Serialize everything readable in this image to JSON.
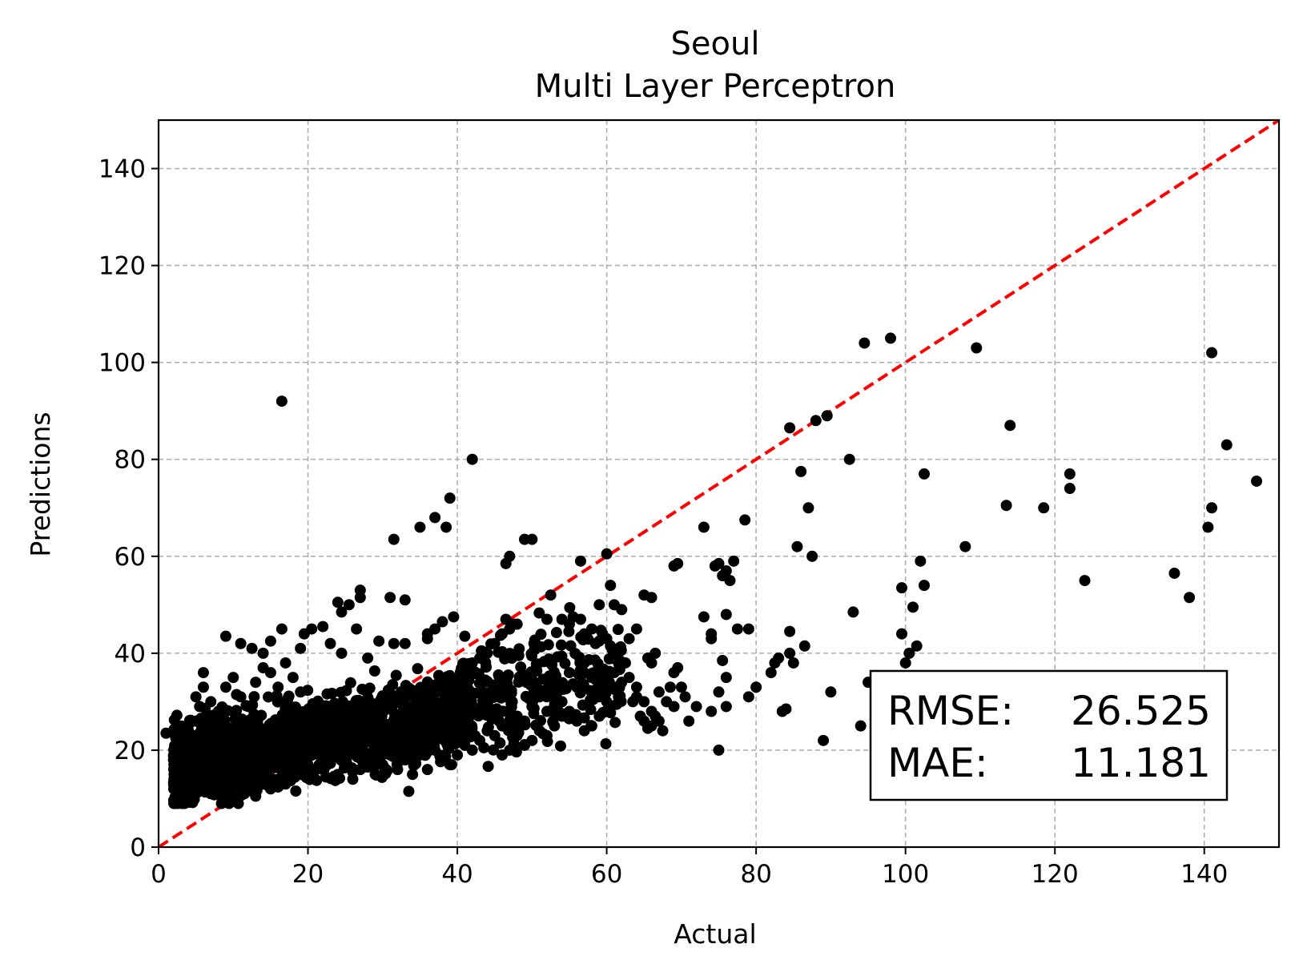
{
  "chart_data": {
    "type": "scatter",
    "title": "Seoul",
    "subtitle": "Multi Layer Perceptron",
    "xlabel": "Actual",
    "ylabel": "Predictions",
    "xlim": [
      0,
      150
    ],
    "ylim": [
      0,
      150
    ],
    "xticks": [
      "0",
      "20",
      "40",
      "60",
      "80",
      "100",
      "120",
      "140"
    ],
    "yticks": [
      "0",
      "20",
      "40",
      "60",
      "80",
      "100",
      "120",
      "140"
    ],
    "grid": true,
    "grid_style": "dashed",
    "reference_line": {
      "from": [
        0,
        0
      ],
      "to": [
        150,
        150
      ],
      "color": "#ff0000",
      "style": "dashed"
    },
    "marker_color": "#000000",
    "metrics": {
      "rmse_label": "RMSE:",
      "rmse_value": "26.525",
      "mae_label": "MAE:",
      "mae_value": "11.181"
    },
    "metrics_box_position": "lower-right",
    "points": [
      [
        1,
        23.5
      ],
      [
        2.5,
        25
      ],
      [
        16.5,
        92
      ],
      [
        42,
        80
      ],
      [
        39,
        72
      ],
      [
        37,
        68
      ],
      [
        35,
        66
      ],
      [
        38.5,
        66
      ],
      [
        31.5,
        63.5
      ],
      [
        49,
        63.5
      ],
      [
        27,
        53
      ],
      [
        27,
        51.5
      ],
      [
        31,
        51.5
      ],
      [
        33,
        51
      ],
      [
        24,
        50.5
      ],
      [
        25.5,
        50
      ],
      [
        24.5,
        48.5
      ],
      [
        39.5,
        47.5
      ],
      [
        38,
        46.5
      ],
      [
        37,
        45
      ],
      [
        36,
        44
      ],
      [
        41,
        43.5
      ],
      [
        22,
        45.5
      ],
      [
        20.5,
        45
      ],
      [
        16.5,
        45
      ],
      [
        19.5,
        44
      ],
      [
        23,
        42
      ],
      [
        26.5,
        45
      ],
      [
        29.5,
        42.5
      ],
      [
        31.5,
        42
      ],
      [
        33,
        42
      ],
      [
        36,
        43
      ],
      [
        15,
        42.5
      ],
      [
        11,
        42
      ],
      [
        9,
        43.5
      ],
      [
        12.5,
        41
      ],
      [
        14,
        40
      ],
      [
        19,
        41
      ],
      [
        24.5,
        40
      ],
      [
        28,
        39
      ],
      [
        3,
        22
      ],
      [
        4,
        24
      ],
      [
        5,
        26
      ],
      [
        5.5,
        29
      ],
      [
        5,
        31
      ],
      [
        6,
        33
      ],
      [
        6,
        36
      ],
      [
        7,
        30
      ],
      [
        8,
        28
      ],
      [
        9,
        33
      ],
      [
        10,
        35
      ],
      [
        11,
        31
      ],
      [
        12,
        29
      ],
      [
        13,
        34
      ],
      [
        14,
        37
      ],
      [
        15,
        36
      ],
      [
        16,
        33
      ],
      [
        17,
        38
      ],
      [
        18,
        35
      ],
      [
        19,
        32
      ],
      [
        2,
        18
      ],
      [
        2.5,
        16
      ],
      [
        3,
        14
      ],
      [
        4,
        17
      ],
      [
        5,
        19
      ],
      [
        6,
        15
      ],
      [
        7,
        13
      ],
      [
        8,
        11
      ],
      [
        9,
        14
      ],
      [
        10,
        16
      ],
      [
        11,
        12
      ],
      [
        12,
        15
      ],
      [
        13,
        10.5
      ],
      [
        14,
        13
      ],
      [
        15,
        12
      ],
      [
        16,
        14
      ],
      [
        17,
        13
      ],
      [
        18,
        16
      ],
      [
        19,
        15
      ],
      [
        20,
        17
      ],
      [
        21,
        14
      ],
      [
        22,
        16
      ],
      [
        23,
        18
      ],
      [
        24,
        15
      ],
      [
        25,
        17
      ],
      [
        26,
        14
      ],
      [
        27,
        16
      ],
      [
        28,
        18
      ],
      [
        29,
        15
      ],
      [
        30,
        17
      ],
      [
        31,
        19
      ],
      [
        32,
        16
      ],
      [
        33,
        18
      ],
      [
        33.5,
        11.5
      ],
      [
        34,
        15
      ],
      [
        35,
        19
      ],
      [
        36,
        16
      ],
      [
        37,
        20
      ],
      [
        38,
        18
      ],
      [
        39,
        17
      ],
      [
        40,
        19
      ],
      [
        41,
        21
      ],
      [
        42,
        20
      ],
      [
        43,
        22
      ],
      [
        44,
        24
      ],
      [
        45,
        23
      ],
      [
        46,
        25
      ],
      [
        47,
        24
      ],
      [
        48,
        27
      ],
      [
        49,
        26
      ],
      [
        50,
        29
      ],
      [
        51,
        31
      ],
      [
        52,
        28
      ],
      [
        53,
        33
      ],
      [
        54,
        30
      ],
      [
        55,
        36
      ],
      [
        56,
        33
      ],
      [
        57,
        38
      ],
      [
        58,
        35
      ],
      [
        59,
        31
      ],
      [
        46.5,
        47
      ],
      [
        47.5,
        46
      ],
      [
        48,
        46
      ],
      [
        47,
        45
      ],
      [
        46,
        44
      ],
      [
        45,
        42
      ],
      [
        44,
        40
      ],
      [
        43,
        39
      ],
      [
        42,
        38
      ],
      [
        41,
        37
      ],
      [
        52,
        47
      ],
      [
        54,
        47
      ],
      [
        55.5,
        47.5
      ],
      [
        56.5,
        47
      ],
      [
        55,
        46
      ],
      [
        57,
        44
      ],
      [
        58,
        45
      ],
      [
        58.5,
        42
      ],
      [
        59,
        42.5
      ],
      [
        60,
        43
      ],
      [
        60.5,
        41.5
      ],
      [
        61.5,
        39
      ],
      [
        62.5,
        38
      ],
      [
        61,
        36
      ],
      [
        62,
        34
      ],
      [
        60,
        30
      ],
      [
        59,
        27
      ],
      [
        58,
        25
      ],
      [
        57,
        24
      ],
      [
        56,
        26
      ],
      [
        55,
        28
      ],
      [
        54,
        27
      ],
      [
        53,
        25
      ],
      [
        52,
        23
      ],
      [
        51,
        24
      ],
      [
        50,
        22
      ],
      [
        49,
        21
      ],
      [
        48,
        23
      ],
      [
        47,
        20
      ],
      [
        46,
        19
      ],
      [
        46.5,
        58.5
      ],
      [
        47,
        60
      ],
      [
        50,
        63.5
      ],
      [
        52.5,
        52
      ],
      [
        56.5,
        59
      ],
      [
        60,
        60.5
      ],
      [
        60.5,
        54
      ],
      [
        61,
        50
      ],
      [
        62,
        49
      ],
      [
        59,
        50
      ],
      [
        65,
        52
      ],
      [
        66,
        51.5
      ],
      [
        64,
        45
      ],
      [
        63,
        43
      ],
      [
        65.5,
        39
      ],
      [
        66.5,
        40
      ],
      [
        66,
        38
      ],
      [
        63,
        35
      ],
      [
        64,
        33
      ],
      [
        65,
        30
      ],
      [
        66,
        28
      ],
      [
        67,
        26
      ],
      [
        67.5,
        24
      ],
      [
        66,
        25
      ],
      [
        65.5,
        24.5
      ],
      [
        64,
        31
      ],
      [
        63.5,
        30
      ],
      [
        64.5,
        27
      ],
      [
        65,
        26
      ],
      [
        68,
        30
      ],
      [
        66.5,
        27
      ],
      [
        67,
        32
      ],
      [
        68.5,
        33
      ],
      [
        69,
        36
      ],
      [
        69.5,
        37
      ],
      [
        70,
        33
      ],
      [
        71,
        26
      ],
      [
        72,
        29
      ],
      [
        70.5,
        31
      ],
      [
        69,
        29
      ],
      [
        69,
        58
      ],
      [
        69.5,
        58.5
      ],
      [
        73,
        66
      ],
      [
        73,
        47.5
      ],
      [
        74,
        44
      ],
      [
        74,
        43
      ],
      [
        74.5,
        58
      ],
      [
        75,
        58.5
      ],
      [
        75.5,
        56
      ],
      [
        76,
        57
      ],
      [
        76.5,
        55
      ],
      [
        77,
        59
      ],
      [
        77.5,
        45
      ],
      [
        76,
        48
      ],
      [
        75,
        32
      ],
      [
        74,
        28
      ],
      [
        76,
        29
      ],
      [
        75,
        20
      ],
      [
        76,
        35
      ],
      [
        75.5,
        38.5
      ],
      [
        78.5,
        67.5
      ],
      [
        79,
        45
      ],
      [
        79,
        31
      ],
      [
        80,
        33
      ],
      [
        82,
        36
      ],
      [
        82.5,
        38
      ],
      [
        83,
        39
      ],
      [
        83.5,
        28
      ],
      [
        84,
        28.5
      ],
      [
        84.5,
        40
      ],
      [
        85,
        38
      ],
      [
        85.5,
        62
      ],
      [
        84.5,
        44.5
      ],
      [
        84.5,
        86.5
      ],
      [
        86,
        77.5
      ],
      [
        87,
        70
      ],
      [
        87.5,
        60
      ],
      [
        86.5,
        41.5
      ],
      [
        88,
        88
      ],
      [
        89.5,
        89
      ],
      [
        92.5,
        80
      ],
      [
        93,
        48.5
      ],
      [
        94,
        25
      ],
      [
        94.5,
        104
      ],
      [
        95,
        34
      ],
      [
        89,
        22
      ],
      [
        90,
        32
      ],
      [
        98,
        105
      ],
      [
        99.5,
        53.5
      ],
      [
        99.5,
        44
      ],
      [
        100,
        38
      ],
      [
        101,
        49.5
      ],
      [
        101.5,
        41.5
      ],
      [
        102,
        59
      ],
      [
        102.5,
        77
      ],
      [
        102.5,
        54
      ],
      [
        100.5,
        40
      ],
      [
        108,
        62
      ],
      [
        109.5,
        103
      ],
      [
        113.5,
        70.5
      ],
      [
        114,
        87
      ],
      [
        118.5,
        70
      ],
      [
        122,
        77
      ],
      [
        122,
        74
      ],
      [
        124,
        55
      ],
      [
        136,
        56.5
      ],
      [
        138,
        51.5
      ],
      [
        140.5,
        66
      ],
      [
        141,
        102
      ],
      [
        141,
        70
      ],
      [
        143,
        83
      ],
      [
        147,
        75.5
      ]
    ]
  }
}
